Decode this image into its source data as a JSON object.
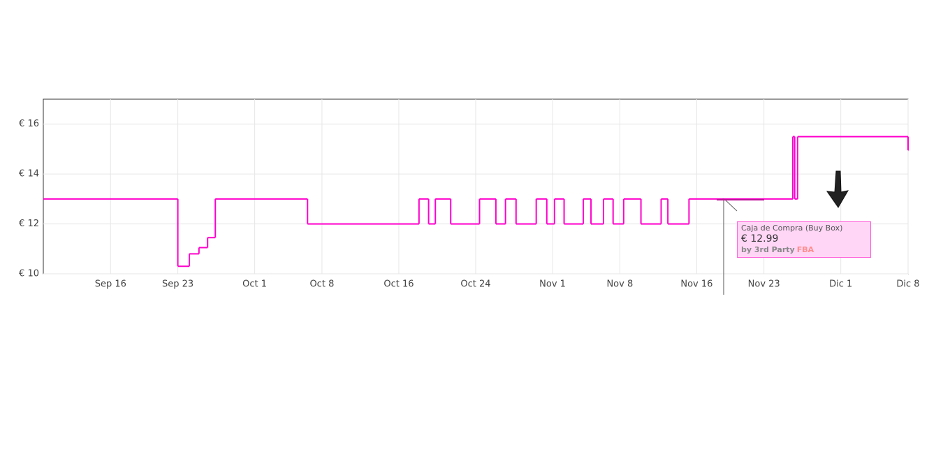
{
  "chart_data": {
    "type": "line",
    "x": [
      252,
      266,
      267.2,
      268.2,
      269.1,
      269.9,
      279.5,
      291.1,
      292.1,
      292.8,
      294.4,
      297.4,
      299.1,
      300.1,
      301.2,
      303.3,
      304.4,
      305.2,
      306.2,
      308.2,
      309.0,
      310.3,
      311.3,
      312.4,
      314.2,
      316.3,
      317.0,
      319.2,
      330.0,
      330.2,
      330.5,
      342
    ],
    "series": [
      {
        "color": "#ff00cc",
        "values": [
          13,
          10.3,
          10.8,
          11.05,
          11.45,
          13,
          12,
          13,
          12,
          13,
          12,
          13,
          12,
          13,
          12,
          13,
          12,
          13,
          12,
          13,
          12,
          13,
          12,
          13,
          12,
          13,
          12,
          13,
          15.5,
          13,
          15.5,
          14.95
        ]
      }
    ],
    "xlim": [
      252,
      342
    ],
    "xticks": [
      {
        "value": 259,
        "label": "Sep 16"
      },
      {
        "value": 266,
        "label": "Sep 23"
      },
      {
        "value": 274,
        "label": "Oct 1"
      },
      {
        "value": 281,
        "label": "Oct 8"
      },
      {
        "value": 289,
        "label": "Oct 16"
      },
      {
        "value": 297,
        "label": "Oct 24"
      },
      {
        "value": 305,
        "label": "Nov 1"
      },
      {
        "value": 312,
        "label": "Nov 8"
      },
      {
        "value": 320,
        "label": "Nov 16"
      },
      {
        "value": 327,
        "label": "Nov 23"
      },
      {
        "value": 335,
        "label": "Dic 1"
      },
      {
        "value": 342,
        "label": "Dic 8"
      }
    ],
    "ylim": [
      10,
      17
    ],
    "yticks": [
      {
        "value": 10,
        "label": "€ 10"
      },
      {
        "value": 12,
        "label": "€ 12"
      },
      {
        "value": 14,
        "label": "€ 14"
      },
      {
        "value": 16,
        "label": "€ 16"
      }
    ],
    "grid": true,
    "tooltip": {
      "title": "Caja de Compra (Buy Box)",
      "price": "€ 12.99",
      "by": "by 3rd Party",
      "fulfillment": "FBA"
    }
  }
}
